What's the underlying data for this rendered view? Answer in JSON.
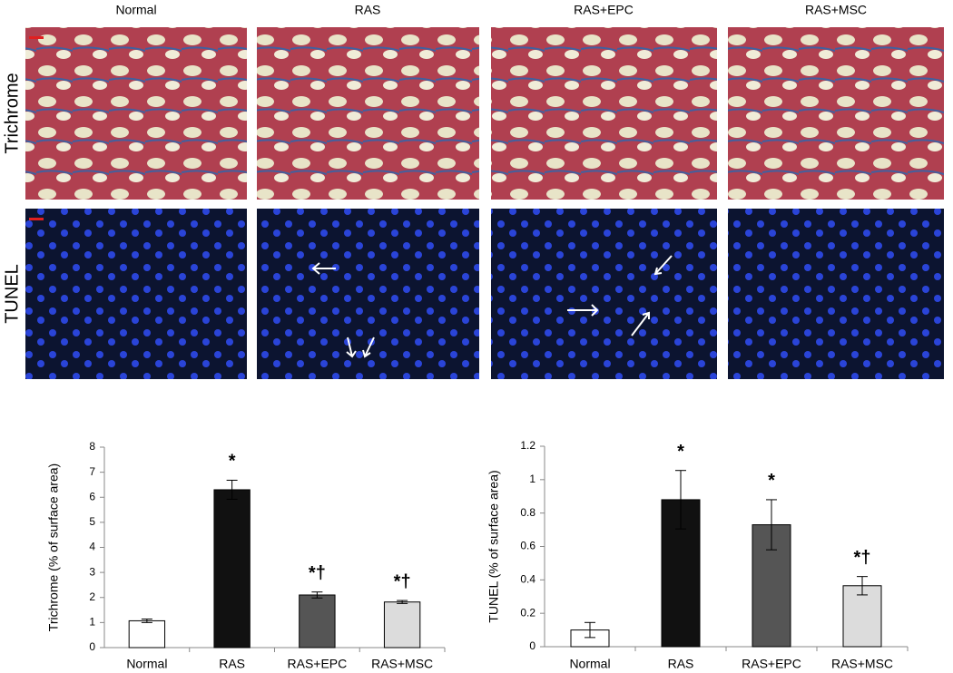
{
  "image_panels": {
    "columns": [
      "Normal",
      "RAS",
      "RAS+EPC",
      "RAS+MSC"
    ],
    "rows": [
      "Trichrome",
      "TUNEL"
    ]
  },
  "chart_data": [
    {
      "type": "bar",
      "y_label": "Trichrome (% of surface area)",
      "categories": [
        "Normal",
        "RAS",
        "RAS+EPC",
        "RAS+MSC"
      ],
      "values": [
        1.07,
        6.3,
        2.1,
        1.82
      ],
      "errors": [
        0.07,
        0.38,
        0.12,
        0.06
      ],
      "annotations": [
        null,
        "*",
        "*†",
        "*†"
      ],
      "colors": [
        "#ffffff",
        "#111111",
        "#555555",
        "#dcdcdc"
      ],
      "ylim": [
        0,
        8
      ],
      "yticks": [
        0,
        1,
        2,
        3,
        4,
        5,
        6,
        7,
        8
      ]
    },
    {
      "type": "bar",
      "y_label": "TUNEL (% of surface area)",
      "categories": [
        "Normal",
        "RAS",
        "RAS+EPC",
        "RAS+MSC"
      ],
      "values": [
        0.1,
        0.88,
        0.73,
        0.365
      ],
      "errors": [
        0.045,
        0.175,
        0.15,
        0.055
      ],
      "annotations": [
        null,
        "*",
        "*",
        "*†"
      ],
      "colors": [
        "#ffffff",
        "#111111",
        "#555555",
        "#dcdcdc"
      ],
      "ylim": [
        0,
        1.2
      ],
      "yticks": [
        0,
        0.2,
        0.4,
        0.6,
        0.8,
        1,
        1.2
      ]
    }
  ]
}
